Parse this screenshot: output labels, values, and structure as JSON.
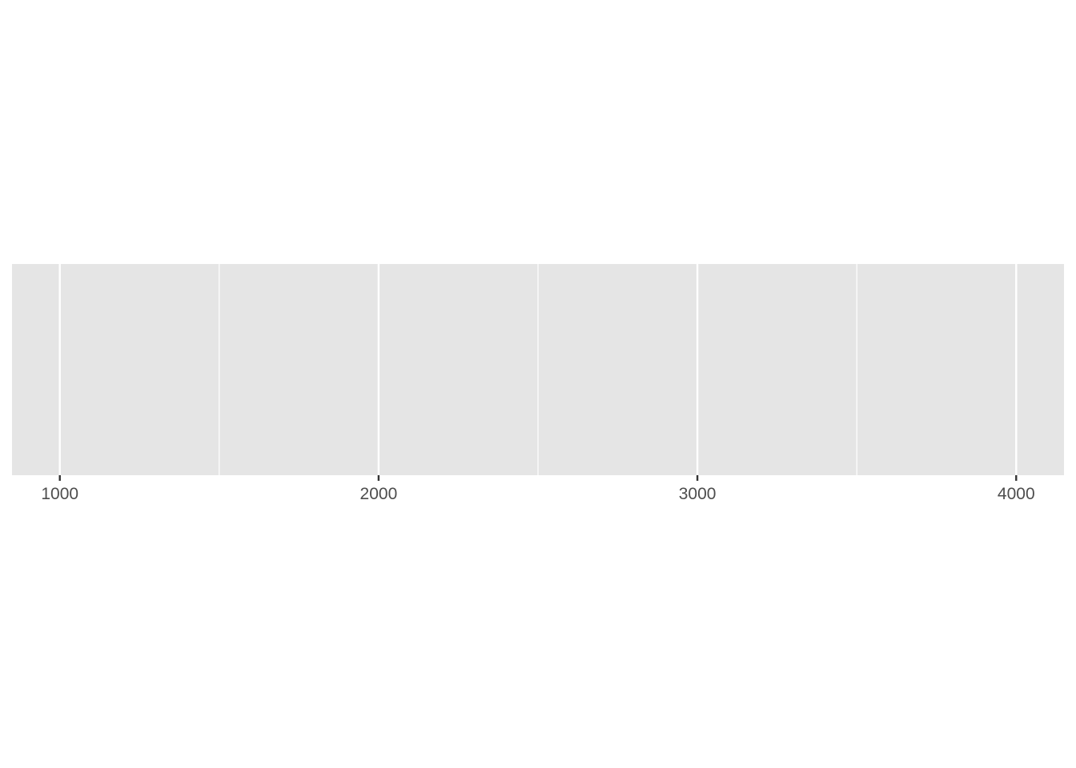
{
  "chart_data": {
    "type": "bar",
    "title": "",
    "xlabel": "",
    "ylabel": "",
    "x_ticks": [
      {
        "value": 1000,
        "label": "1000"
      },
      {
        "value": 2000,
        "label": "2000"
      },
      {
        "value": 3000,
        "label": "3000"
      },
      {
        "value": 4000,
        "label": "4000"
      }
    ],
    "x_minor_breaks": [
      1500,
      2500,
      3500
    ],
    "xlim": [
      850,
      4150
    ],
    "y_axis_shown": false,
    "series": [],
    "grid": true,
    "legend": "none",
    "colors": {
      "panel_background": "#E5E5E5",
      "gridline": "#FFFFFF",
      "tick_mark": "#333333",
      "tick_label": "#4D4D4D",
      "page_background": "#FFFFFF"
    }
  }
}
